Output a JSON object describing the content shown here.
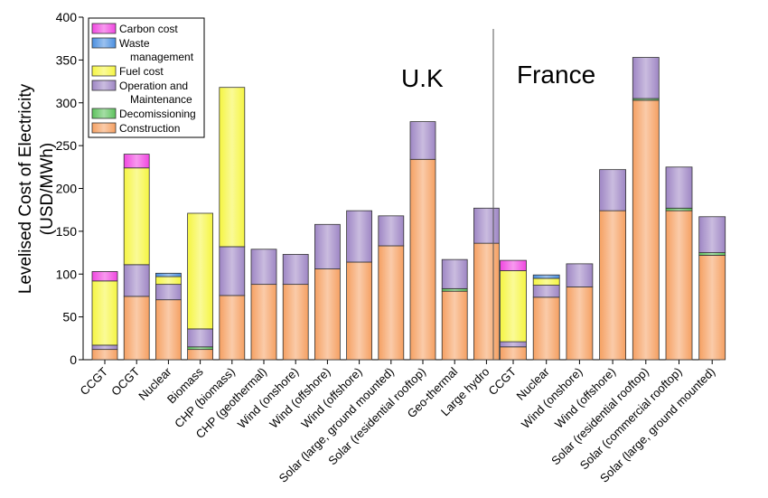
{
  "chart_data": {
    "type": "bar",
    "stacked": true,
    "ylabel": "Levelised Cost of Electricity\n(USD/MWh)",
    "ylim": [
      0,
      400
    ],
    "yticks": [
      0,
      50,
      100,
      150,
      200,
      250,
      300,
      350,
      400
    ],
    "grid": false,
    "legend_position": "top-left",
    "series": [
      {
        "key": "construction",
        "name": "Construction",
        "color": "#f5a062"
      },
      {
        "key": "decom",
        "name": "Decomissioning",
        "color": "#5cc25c"
      },
      {
        "key": "om",
        "name": "Operation and\nMaintenance",
        "color": "#9e86c4"
      },
      {
        "key": "fuel",
        "name": "Fuel cost",
        "color": "#f5f542"
      },
      {
        "key": "waste",
        "name": "Waste\nmanagement",
        "color": "#4a8fe0"
      },
      {
        "key": "carbon",
        "name": "Carbon cost",
        "color": "#f046e0"
      }
    ],
    "panels": [
      {
        "label": "U.K",
        "bars": [
          {
            "category": "CCGT",
            "values": {
              "construction": 12,
              "decom": 0,
              "om": 5,
              "fuel": 75,
              "waste": 0,
              "carbon": 11
            }
          },
          {
            "category": "OCGT",
            "values": {
              "construction": 74,
              "decom": 0,
              "om": 37,
              "fuel": 113,
              "waste": 0,
              "carbon": 16
            }
          },
          {
            "category": "Nuclear",
            "values": {
              "construction": 70,
              "decom": 0,
              "om": 18,
              "fuel": 9,
              "waste": 4,
              "carbon": 0
            }
          },
          {
            "category": "Biomass",
            "values": {
              "construction": 12,
              "decom": 3,
              "om": 21,
              "fuel": 135,
              "waste": 0,
              "carbon": 0
            }
          },
          {
            "category": "CHP (biomass)",
            "values": {
              "construction": 75,
              "decom": 0,
              "om": 57,
              "fuel": 186,
              "waste": 0,
              "carbon": 0
            }
          },
          {
            "category": "CHP (geothermal)",
            "values": {
              "construction": 88,
              "decom": 0,
              "om": 41,
              "fuel": 0,
              "waste": 0,
              "carbon": 0
            }
          },
          {
            "category": "Wind (onshore)",
            "values": {
              "construction": 88,
              "decom": 0,
              "om": 35,
              "fuel": 0,
              "waste": 0,
              "carbon": 0
            }
          },
          {
            "category": "Wind (offshore)",
            "values": {
              "construction": 106,
              "decom": 0,
              "om": 52,
              "fuel": 0,
              "waste": 0,
              "carbon": 0
            }
          },
          {
            "category": "Wind (offshore)",
            "values": {
              "construction": 114,
              "decom": 0,
              "om": 60,
              "fuel": 0,
              "waste": 0,
              "carbon": 0
            }
          },
          {
            "category": "Solar (large, ground mounted)",
            "values": {
              "construction": 133,
              "decom": 0,
              "om": 35,
              "fuel": 0,
              "waste": 0,
              "carbon": 0
            }
          },
          {
            "category": "Solar (residential rooftop)",
            "values": {
              "construction": 234,
              "decom": 0,
              "om": 44,
              "fuel": 0,
              "waste": 0,
              "carbon": 0
            }
          },
          {
            "category": "Geo-thermal",
            "values": {
              "construction": 80,
              "decom": 3,
              "om": 34,
              "fuel": 0,
              "waste": 0,
              "carbon": 0
            }
          },
          {
            "category": "Large hydro",
            "values": {
              "construction": 136,
              "decom": 0,
              "om": 41,
              "fuel": 0,
              "waste": 0,
              "carbon": 0
            }
          }
        ]
      },
      {
        "label": "France",
        "bars": [
          {
            "category": "CCGT",
            "values": {
              "construction": 15,
              "decom": 0,
              "om": 6,
              "fuel": 83,
              "waste": 0,
              "carbon": 12
            }
          },
          {
            "category": "Nuclear",
            "values": {
              "construction": 73,
              "decom": 0,
              "om": 14,
              "fuel": 8,
              "waste": 4,
              "carbon": 0
            }
          },
          {
            "category": "Wind (onshore)",
            "values": {
              "construction": 85,
              "decom": 0,
              "om": 27,
              "fuel": 0,
              "waste": 0,
              "carbon": 0
            }
          },
          {
            "category": "Wind (offshore)",
            "values": {
              "construction": 174,
              "decom": 0,
              "om": 48,
              "fuel": 0,
              "waste": 0,
              "carbon": 0
            }
          },
          {
            "category": "Solar (residential rooftop)",
            "values": {
              "construction": 303,
              "decom": 2,
              "om": 48,
              "fuel": 0,
              "waste": 0,
              "carbon": 0
            }
          },
          {
            "category": "Solar (commercial rooftop)",
            "values": {
              "construction": 174,
              "decom": 3,
              "om": 48,
              "fuel": 0,
              "waste": 0,
              "carbon": 0
            }
          },
          {
            "category": "Solar (large, ground mounted)",
            "values": {
              "construction": 122,
              "decom": 3,
              "om": 42,
              "fuel": 0,
              "waste": 0,
              "carbon": 0
            }
          }
        ]
      }
    ]
  }
}
